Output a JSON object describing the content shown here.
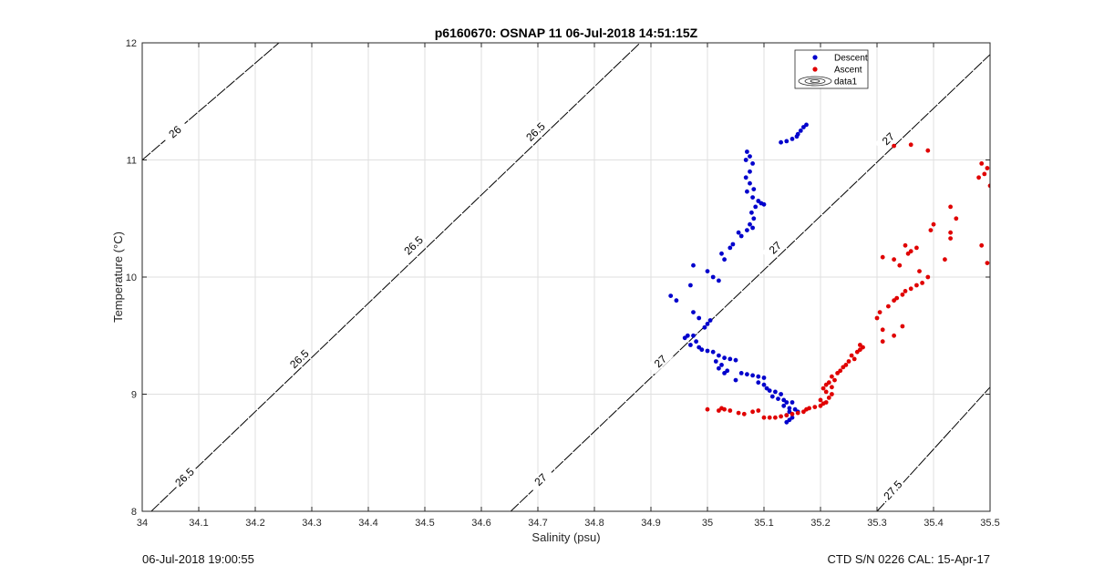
{
  "footer": {
    "timestamp": "06-Jul-2018 19:00:55",
    "instrument": "CTD S/N 0226  CAL: 15-Apr-17"
  },
  "colors": {
    "descent": "#0000cc",
    "ascent": "#e00000",
    "contour": "#000000",
    "grid": "#dfdfdf"
  },
  "chart_data": {
    "type": "scatter",
    "title": "p6160670: OSNAP 11 06-Jul-2018 14:51:15Z",
    "xlabel": "Salinity (psu)",
    "ylabel": "Temperature (°C)",
    "xlim": [
      34,
      35.5
    ],
    "ylim": [
      8,
      12
    ],
    "x_ticks": [
      "34",
      "34.1",
      "34.2",
      "34.3",
      "34.4",
      "34.5",
      "34.6",
      "34.7",
      "34.8",
      "34.9",
      "35",
      "35.1",
      "35.2",
      "35.3",
      "35.4",
      "35.5"
    ],
    "y_ticks": [
      "8",
      "9",
      "10",
      "11",
      "12"
    ],
    "grid": true,
    "legend_position": "top-right",
    "legend": [
      "Descent",
      "Ascent",
      "data1"
    ],
    "density_contours": [
      {
        "label": "26",
        "points": [
          [
            34.0,
            11.0
          ],
          [
            34.242,
            12.0
          ]
        ]
      },
      {
        "label": "26.5",
        "points": [
          [
            34.016,
            8.0
          ],
          [
            34.881,
            12.0
          ]
        ]
      },
      {
        "label": "27",
        "points": [
          [
            34.652,
            8.0
          ],
          [
            35.5,
            11.9
          ]
        ]
      },
      {
        "label": "27.5",
        "points": [
          [
            35.3,
            8.0
          ],
          [
            35.5,
            9.06
          ]
        ]
      }
    ],
    "contour_labels": [
      {
        "text": "26",
        "x": 34.058,
        "y": 11.24
      },
      {
        "text": "26.5",
        "x": 34.075,
        "y": 8.29
      },
      {
        "text": "26.5",
        "x": 34.278,
        "y": 9.3
      },
      {
        "text": "26.5",
        "x": 34.48,
        "y": 10.27
      },
      {
        "text": "26.5",
        "x": 34.696,
        "y": 11.24
      },
      {
        "text": "27",
        "x": 34.705,
        "y": 8.27
      },
      {
        "text": "27",
        "x": 34.917,
        "y": 9.28
      },
      {
        "text": "27",
        "x": 35.12,
        "y": 10.25
      },
      {
        "text": "27",
        "x": 35.32,
        "y": 11.18
      },
      {
        "text": "27.5",
        "x": 35.328,
        "y": 8.18
      }
    ],
    "series": [
      {
        "name": "Descent",
        "points": [
          [
            35.175,
            11.3
          ],
          [
            35.17,
            11.28
          ],
          [
            35.165,
            11.25
          ],
          [
            35.16,
            11.22
          ],
          [
            35.158,
            11.2
          ],
          [
            35.15,
            11.18
          ],
          [
            35.14,
            11.16
          ],
          [
            35.13,
            11.15
          ],
          [
            35.07,
            11.07
          ],
          [
            35.075,
            11.03
          ],
          [
            35.068,
            11.0
          ],
          [
            35.08,
            10.97
          ],
          [
            35.075,
            10.9
          ],
          [
            35.068,
            10.85
          ],
          [
            35.075,
            10.8
          ],
          [
            35.082,
            10.75
          ],
          [
            35.07,
            10.73
          ],
          [
            35.08,
            10.68
          ],
          [
            35.09,
            10.65
          ],
          [
            35.095,
            10.63
          ],
          [
            35.1,
            10.62
          ],
          [
            35.085,
            10.6
          ],
          [
            35.078,
            10.55
          ],
          [
            35.082,
            10.5
          ],
          [
            35.075,
            10.45
          ],
          [
            35.08,
            10.42
          ],
          [
            35.07,
            10.4
          ],
          [
            35.055,
            10.38
          ],
          [
            35.06,
            10.35
          ],
          [
            35.045,
            10.28
          ],
          [
            35.04,
            10.25
          ],
          [
            35.025,
            10.2
          ],
          [
            35.03,
            10.15
          ],
          [
            34.975,
            10.1
          ],
          [
            35.0,
            10.05
          ],
          [
            35.01,
            10.0
          ],
          [
            35.02,
            9.97
          ],
          [
            34.97,
            9.93
          ],
          [
            34.935,
            9.84
          ],
          [
            34.945,
            9.8
          ],
          [
            34.975,
            9.7
          ],
          [
            34.985,
            9.65
          ],
          [
            35.005,
            9.63
          ],
          [
            35.0,
            9.6
          ],
          [
            34.995,
            9.57
          ],
          [
            34.965,
            9.5
          ],
          [
            34.96,
            9.48
          ],
          [
            34.975,
            9.5
          ],
          [
            34.98,
            9.45
          ],
          [
            34.97,
            9.42
          ],
          [
            34.985,
            9.4
          ],
          [
            34.99,
            9.38
          ],
          [
            35.0,
            9.37
          ],
          [
            35.01,
            9.36
          ],
          [
            35.02,
            9.33
          ],
          [
            35.03,
            9.31
          ],
          [
            35.04,
            9.3
          ],
          [
            35.05,
            9.29
          ],
          [
            35.015,
            9.28
          ],
          [
            35.025,
            9.25
          ],
          [
            35.02,
            9.22
          ],
          [
            35.035,
            9.2
          ],
          [
            35.03,
            9.18
          ],
          [
            35.06,
            9.18
          ],
          [
            35.07,
            9.17
          ],
          [
            35.08,
            9.16
          ],
          [
            35.09,
            9.15
          ],
          [
            35.1,
            9.14
          ],
          [
            35.05,
            9.12
          ],
          [
            35.09,
            9.1
          ],
          [
            35.1,
            9.08
          ],
          [
            35.105,
            9.05
          ],
          [
            35.11,
            9.03
          ],
          [
            35.12,
            9.02
          ],
          [
            35.13,
            9.0
          ],
          [
            35.115,
            8.98
          ],
          [
            35.125,
            8.96
          ],
          [
            35.135,
            8.95
          ],
          [
            35.14,
            8.93
          ],
          [
            35.15,
            8.93
          ],
          [
            35.135,
            8.9
          ],
          [
            35.145,
            8.88
          ],
          [
            35.155,
            8.87
          ],
          [
            35.16,
            8.85
          ],
          [
            35.145,
            8.85
          ],
          [
            35.14,
            8.82
          ],
          [
            35.15,
            8.8
          ],
          [
            35.145,
            8.78
          ],
          [
            35.14,
            8.76
          ]
        ]
      },
      {
        "name": "Ascent",
        "points": [
          [
            35.0,
            8.87
          ],
          [
            35.02,
            8.86
          ],
          [
            35.025,
            8.88
          ],
          [
            35.03,
            8.87
          ],
          [
            35.04,
            8.86
          ],
          [
            35.055,
            8.84
          ],
          [
            35.065,
            8.83
          ],
          [
            35.08,
            8.85
          ],
          [
            35.09,
            8.86
          ],
          [
            35.1,
            8.8
          ],
          [
            35.11,
            8.8
          ],
          [
            35.12,
            8.8
          ],
          [
            35.13,
            8.81
          ],
          [
            35.14,
            8.82
          ],
          [
            35.15,
            8.83
          ],
          [
            35.16,
            8.84
          ],
          [
            35.17,
            8.85
          ],
          [
            35.175,
            8.87
          ],
          [
            35.18,
            8.88
          ],
          [
            35.19,
            8.89
          ],
          [
            35.2,
            8.9
          ],
          [
            35.205,
            8.92
          ],
          [
            35.21,
            8.93
          ],
          [
            35.2,
            8.95
          ],
          [
            35.215,
            8.97
          ],
          [
            35.22,
            9.0
          ],
          [
            35.21,
            9.02
          ],
          [
            35.205,
            9.05
          ],
          [
            35.22,
            9.06
          ],
          [
            35.21,
            9.08
          ],
          [
            35.215,
            9.1
          ],
          [
            35.225,
            9.12
          ],
          [
            35.22,
            9.15
          ],
          [
            35.23,
            9.18
          ],
          [
            35.235,
            9.2
          ],
          [
            35.24,
            9.23
          ],
          [
            35.245,
            9.25
          ],
          [
            35.25,
            9.28
          ],
          [
            35.26,
            9.3
          ],
          [
            35.255,
            9.33
          ],
          [
            35.265,
            9.36
          ],
          [
            35.27,
            9.38
          ],
          [
            35.275,
            9.4
          ],
          [
            35.27,
            9.42
          ],
          [
            35.31,
            9.45
          ],
          [
            35.33,
            9.5
          ],
          [
            35.31,
            9.55
          ],
          [
            35.345,
            9.58
          ],
          [
            35.3,
            9.65
          ],
          [
            35.305,
            9.7
          ],
          [
            35.32,
            9.75
          ],
          [
            35.33,
            9.8
          ],
          [
            35.335,
            9.82
          ],
          [
            35.345,
            9.85
          ],
          [
            35.35,
            9.88
          ],
          [
            35.36,
            9.9
          ],
          [
            35.37,
            9.93
          ],
          [
            35.38,
            9.95
          ],
          [
            35.39,
            10.0
          ],
          [
            35.375,
            10.05
          ],
          [
            35.34,
            10.1
          ],
          [
            35.33,
            10.15
          ],
          [
            35.31,
            10.17
          ],
          [
            35.355,
            10.2
          ],
          [
            35.36,
            10.22
          ],
          [
            35.37,
            10.25
          ],
          [
            35.35,
            10.27
          ],
          [
            35.42,
            10.15
          ],
          [
            35.43,
            10.33
          ],
          [
            35.43,
            10.38
          ],
          [
            35.395,
            10.4
          ],
          [
            35.4,
            10.45
          ],
          [
            35.44,
            10.5
          ],
          [
            35.43,
            10.6
          ],
          [
            35.485,
            10.27
          ],
          [
            35.495,
            10.12
          ],
          [
            35.48,
            10.85
          ],
          [
            35.49,
            10.88
          ],
          [
            35.495,
            10.93
          ],
          [
            35.485,
            10.97
          ],
          [
            35.5,
            10.78
          ],
          [
            35.39,
            11.08
          ],
          [
            35.36,
            11.13
          ],
          [
            35.33,
            11.12
          ]
        ]
      }
    ]
  }
}
